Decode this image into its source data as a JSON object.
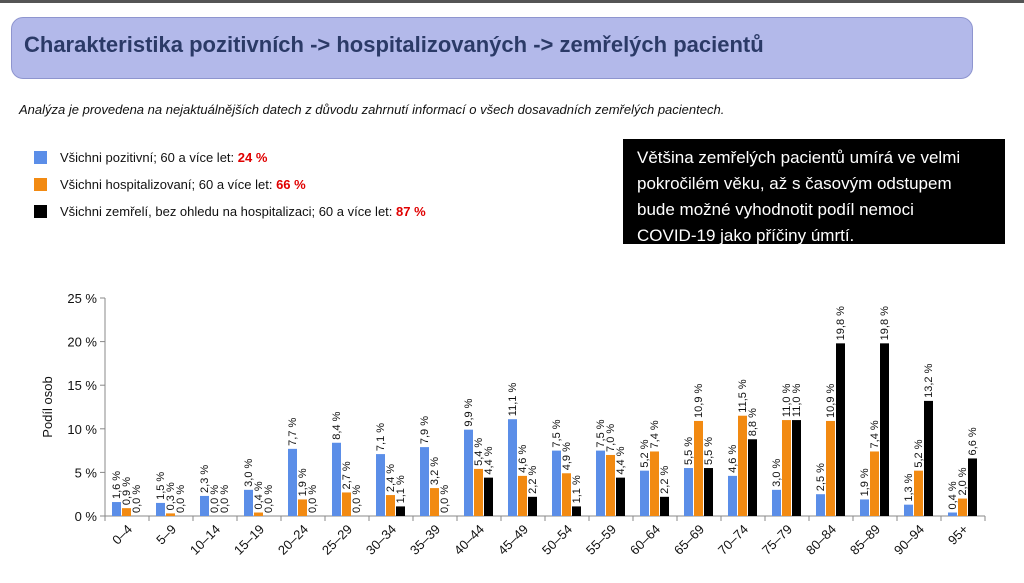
{
  "header": {
    "title": "Charakteristika pozitivních -> hospitalizovaných -> zemřelých pacientů",
    "subtitle": "Analýza je provedena na nejaktuálnějších datech z důvodu zahrnutí informací o všech dosavadních zemřelých pacientech."
  },
  "legend": {
    "items": [
      {
        "label": "Všichni pozitivní; 60 a více let:",
        "value": "24 %",
        "color": "#5b8ee8"
      },
      {
        "label": "Všichni hospitalizovaní; 60 a více let:",
        "value": "66 %",
        "color": "#f28a12"
      },
      {
        "label": "Všichni zemřelí, bez ohledu na hospitalizaci; 60 a více let:",
        "value": "87 %",
        "color": "#000000"
      }
    ]
  },
  "note": {
    "lines": [
      "Většina zemřelých pacientů umírá ve velmi",
      "pokročilém věku, až s časovým odstupem",
      "bude možné vyhodnotit podíl nemoci",
      "COVID-19 jako příčiny úmrtí."
    ]
  },
  "chart_data": {
    "type": "bar",
    "title": "",
    "xlabel": "",
    "ylabel": "Podíl osob",
    "ylim": [
      0,
      25
    ],
    "yticks": [
      "0 %",
      "5 %",
      "10 %",
      "15 %",
      "20 %",
      "25 %"
    ],
    "categories": [
      "0–4",
      "5–9",
      "10–14",
      "15–19",
      "20–24",
      "25–29",
      "30–34",
      "35–39",
      "40–44",
      "45–49",
      "50–54",
      "55–59",
      "60–64",
      "65–69",
      "70–74",
      "75–79",
      "80–84",
      "85–89",
      "90–94",
      "95+"
    ],
    "series": [
      {
        "name": "Všichni pozitivní",
        "color": "#5b8ee8",
        "values": [
          1.6,
          1.5,
          2.3,
          3.0,
          7.7,
          8.4,
          7.1,
          7.9,
          9.9,
          11.1,
          7.5,
          7.5,
          5.2,
          5.5,
          4.6,
          3.0,
          2.5,
          1.9,
          1.3,
          0.4
        ],
        "labels": [
          "1,6 %",
          "1,5 %",
          "2,3 %",
          "3,0 %",
          "7,7 %",
          "8,4 %",
          "7,1 %",
          "7,9 %",
          "9,9 %",
          "11,1 %",
          "7,5 %",
          "7,5 %",
          "5,2 %",
          "5,5 %",
          "4,6 %",
          "3,0 %",
          "2,5 %",
          "1,9 %",
          "1,3 %",
          "0,4 %"
        ]
      },
      {
        "name": "Všichni hospitalizovaní",
        "color": "#f28a12",
        "values": [
          0.9,
          0.3,
          0.0,
          0.4,
          1.9,
          2.7,
          2.4,
          3.2,
          5.4,
          4.6,
          4.9,
          7.0,
          7.4,
          10.9,
          11.5,
          11.0,
          10.9,
          7.4,
          5.2,
          2.0
        ],
        "labels": [
          "0,9 %",
          "0,3 %",
          "0,0 %",
          "0,4 %",
          "1,9 %",
          "2,7 %",
          "2,4 %",
          "3,2 %",
          "5,4 %",
          "4,6 %",
          "4,9 %",
          "7,0 %",
          "7,4 %",
          "10,9 %",
          "11,5 %",
          "11,0 %",
          "10,9 %",
          "7,4 %",
          "5,2 %",
          "2,0 %"
        ]
      },
      {
        "name": "Všichni zemřelí",
        "color": "#000000",
        "values": [
          0.0,
          0.0,
          0.0,
          0.0,
          0.0,
          0.0,
          1.1,
          0.0,
          4.4,
          2.2,
          1.1,
          4.4,
          2.2,
          5.5,
          8.8,
          11.0,
          19.8,
          19.8,
          13.2,
          6.6
        ],
        "labels": [
          "0,0 %",
          "0,0 %",
          "0,0 %",
          "0,0 %",
          "0,0 %",
          "0,0 %",
          "1,1 %",
          "0,0 %",
          "4,4 %",
          "2,2 %",
          "1,1 %",
          "4,4 %",
          "2,2 %",
          "5,5 %",
          "8,8 %",
          "11,0 %",
          "19,8 %",
          "19,8 %",
          "13,2 %",
          "6,6 %"
        ]
      }
    ]
  }
}
